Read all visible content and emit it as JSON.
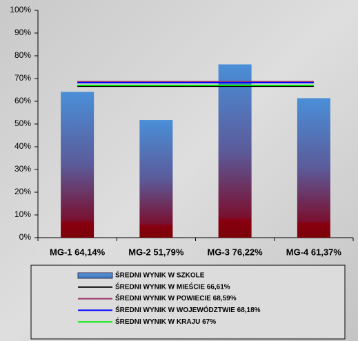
{
  "chart_data": {
    "type": "bar",
    "categories": [
      "MG-1 64,14%",
      "MG-2 51,79%",
      "MG-3 76,22%",
      "MG-4 61,37%"
    ],
    "series": [
      {
        "name": "ŚREDNI WYNIK W SZKOLE",
        "color": "#4a8fd8",
        "values": [
          64.14,
          51.79,
          76.22,
          61.37
        ]
      }
    ],
    "reference_lines": [
      {
        "name": "ŚREDNI WYNIK W MIEŚCIE 66,61%",
        "color": "#000000",
        "value": 66.61
      },
      {
        "name": "ŚREDNI WYNIK W POWIECIE 68,59%",
        "color": "#993366",
        "value": 68.59
      },
      {
        "name": "ŚREDNI WYNIK W WOJEWÓDZTWIE 68,18%",
        "color": "#0000ff",
        "value": 68.18
      },
      {
        "name": "ŚREDNI WYNIK W KRAJU 67%",
        "color": "#00ee00",
        "value": 67
      }
    ],
    "ylim": [
      0,
      100
    ],
    "yticks": [
      {
        "value": 0,
        "label": "0%"
      },
      {
        "value": 10,
        "label": "10%"
      },
      {
        "value": 20,
        "label": "20%"
      },
      {
        "value": 30,
        "label": "30%"
      },
      {
        "value": 40,
        "label": "40%"
      },
      {
        "value": 50,
        "label": "50%"
      },
      {
        "value": 60,
        "label": "60%"
      },
      {
        "value": 70,
        "label": "70%"
      },
      {
        "value": 80,
        "label": "80%"
      },
      {
        "value": 90,
        "label": "90%"
      },
      {
        "value": 100,
        "label": "100%"
      }
    ],
    "grid": false
  }
}
